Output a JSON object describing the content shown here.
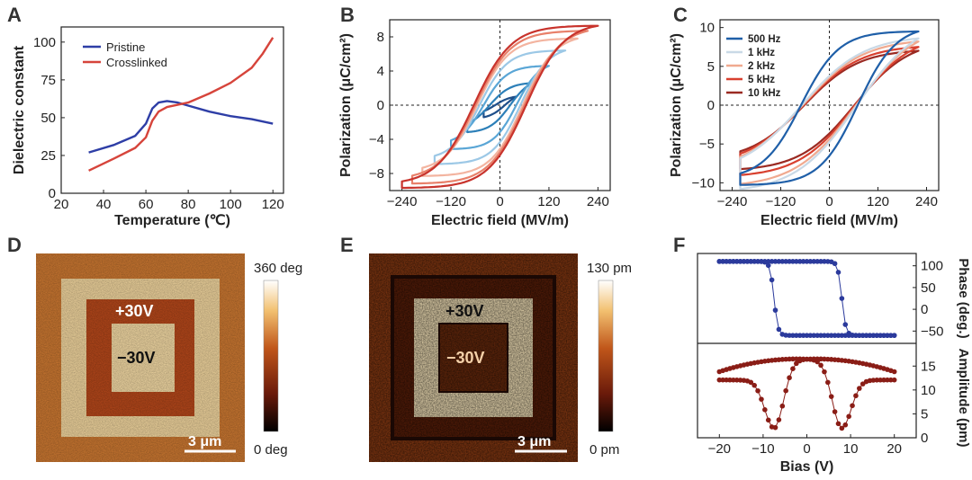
{
  "panels": {
    "A": "A",
    "B": "B",
    "C": "C",
    "D": "D",
    "E": "E",
    "F": "F"
  },
  "chart_data": [
    {
      "id": "A",
      "type": "line",
      "xlabel": "Temperature (℃)",
      "ylabel": "Dielectric constant",
      "xlim": [
        20,
        125
      ],
      "ylim": [
        0,
        110
      ],
      "xticks": [
        20,
        40,
        60,
        80,
        100,
        120
      ],
      "yticks": [
        0,
        25,
        50,
        75,
        100
      ],
      "legend": "top-left",
      "series": [
        {
          "name": "Pristine",
          "color": "#2e3ea6",
          "x": [
            33,
            45,
            55,
            60,
            63,
            66,
            70,
            75,
            80,
            90,
            100,
            110,
            120
          ],
          "y": [
            27,
            32,
            38,
            46,
            56,
            60,
            61,
            60,
            58,
            54,
            51,
            49,
            46
          ]
        },
        {
          "name": "Crosslinked",
          "color": "#d6443b",
          "x": [
            33,
            45,
            55,
            60,
            63,
            66,
            70,
            80,
            90,
            100,
            110,
            115,
            120
          ],
          "y": [
            15,
            23,
            30,
            37,
            48,
            54,
            57,
            60,
            66,
            73,
            83,
            92,
            103
          ]
        }
      ]
    },
    {
      "id": "B",
      "type": "line",
      "xlabel": "Electric field (MV/m)",
      "ylabel": "Polarization (μC/cm²)",
      "xlim": [
        -270,
        270
      ],
      "ylim": [
        -10,
        10
      ],
      "xticks": [
        -240,
        -120,
        0,
        120,
        240
      ],
      "yticks": [
        -8,
        -4,
        0,
        4,
        8
      ],
      "loops": [
        {
          "emax": 40,
          "pmax": 1.0,
          "pr": 0.3,
          "ec": 12,
          "color": "#1f4f8a"
        },
        {
          "emax": 80,
          "pmax": 2.6,
          "pr": 1.2,
          "ec": 25,
          "color": "#2c7fb8"
        },
        {
          "emax": 120,
          "pmax": 4.6,
          "pr": 2.8,
          "ec": 40,
          "color": "#5aa6d6"
        },
        {
          "emax": 160,
          "pmax": 6.4,
          "pr": 4.0,
          "ec": 50,
          "color": "#9cc8e6"
        },
        {
          "emax": 190,
          "pmax": 7.8,
          "pr": 4.8,
          "ec": 56,
          "color": "#f3b4a0"
        },
        {
          "emax": 215,
          "pmax": 8.7,
          "pr": 5.2,
          "ec": 60,
          "color": "#e8806a"
        },
        {
          "emax": 240,
          "pmax": 9.3,
          "pr": 5.6,
          "ec": 64,
          "color": "#c8332c"
        }
      ]
    },
    {
      "id": "C",
      "type": "line",
      "xlabel": "Electric field (MV/m)",
      "ylabel": "Polarization (μC/cm²)",
      "xlim": [
        -270,
        270
      ],
      "ylim": [
        -11,
        11
      ],
      "xticks": [
        -240,
        -120,
        0,
        120,
        240
      ],
      "yticks": [
        -10,
        -5,
        0,
        5,
        10
      ],
      "legend": "top-left",
      "series": [
        {
          "name": "500 Hz",
          "color": "#1f5fa8",
          "emax": 220,
          "pmax": 9.5,
          "pr": 6.0,
          "ec": 70
        },
        {
          "name": "1   kHz",
          "color": "#c9d9e6",
          "emax": 220,
          "pmax": 8.6,
          "pr": 3.6,
          "ec": 68
        },
        {
          "name": "2   kHz",
          "color": "#f0a98f",
          "emax": 220,
          "pmax": 8.2,
          "pr": 3.4,
          "ec": 66
        },
        {
          "name": "5   kHz",
          "color": "#d8402f",
          "emax": 220,
          "pmax": 7.5,
          "pr": 3.2,
          "ec": 64
        },
        {
          "name": "10 kHz",
          "color": "#9b2a22",
          "emax": 220,
          "pmax": 7.0,
          "pr": 3.0,
          "ec": 62
        }
      ]
    },
    {
      "id": "F",
      "type": "scatter",
      "xlabel": "Bias (V)",
      "ylabel_top": "Phase (deg.)",
      "ylabel_bottom": "Amplitude (pm)",
      "xlim": [
        -25,
        25
      ],
      "xticks": [
        -20,
        -10,
        0,
        10,
        20
      ],
      "phase_yticks": [
        100,
        50,
        0,
        -50
      ],
      "phase_ylim": [
        -70,
        120
      ],
      "amp_yticks": [
        0,
        5,
        10,
        15
      ],
      "amp_ylim": [
        0,
        19
      ],
      "phase_color": "#2b3a9c",
      "amp_color": "#8a1d16",
      "phase": {
        "high": 110,
        "low": -60,
        "switch_forward": 8,
        "switch_reverse": -7.5
      },
      "amplitude": {
        "peak": 16.5,
        "min": 2,
        "edge": 11,
        "dip_forward": 8,
        "dip_reverse": -7.5
      }
    }
  ],
  "images": {
    "D": {
      "label_outer": "+30V",
      "label_inner": "−30V",
      "scalebar": "3 μm",
      "colorbar_max": "360 deg",
      "colorbar_min": "0 deg"
    },
    "E": {
      "label_outer": "+30V",
      "label_inner": "−30V",
      "scalebar": "3 μm",
      "colorbar_max": "130 pm",
      "colorbar_min": "0 pm"
    }
  }
}
